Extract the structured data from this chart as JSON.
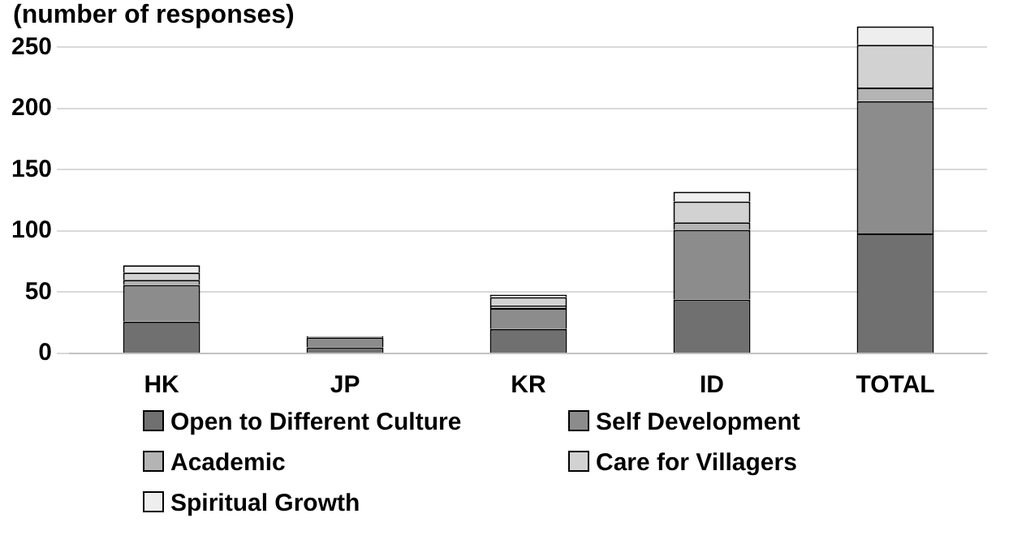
{
  "chart_data": {
    "type": "bar",
    "stacked": true,
    "ylabel": "(number of responses)",
    "categories": [
      "HK",
      "JP",
      "KR",
      "ID",
      "TOTAL"
    ],
    "series": [
      {
        "name": "Open to Different Culture",
        "color": "#707070",
        "values": [
          26,
          5,
          20,
          44,
          98
        ]
      },
      {
        "name": "Self Development",
        "color": "#8c8c8c",
        "values": [
          30,
          8,
          17,
          57,
          108
        ]
      },
      {
        "name": "Academic",
        "color": "#b4b4b4",
        "values": [
          4,
          0,
          2,
          6,
          11
        ]
      },
      {
        "name": "Care for Villagers",
        "color": "#d2d2d2",
        "values": [
          6,
          0,
          7,
          17,
          35
        ]
      },
      {
        "name": "Spiritual Growth",
        "color": "#eeeeee",
        "values": [
          6,
          1,
          2,
          8,
          15
        ]
      }
    ],
    "ylim": [
      0,
      270
    ],
    "yticks": [
      0,
      50,
      100,
      150,
      200,
      250
    ],
    "grid": "y",
    "legend": "bottom"
  }
}
